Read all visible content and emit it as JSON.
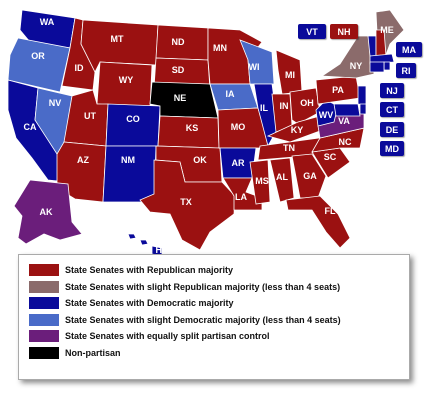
{
  "colors": {
    "rep": "#9b1111",
    "slight_rep": "#8b6b6b",
    "dem": "#0a0a9a",
    "slight_dem": "#4a6bc8",
    "split": "#6b1e7b",
    "nonpartisan": "#000000"
  },
  "states": {
    "WA": "dem",
    "OR": "slight_dem",
    "CA": "dem",
    "NV": "slight_dem",
    "ID": "rep",
    "MT": "rep",
    "WY": "rep",
    "UT": "rep",
    "AZ": "rep",
    "CO": "dem",
    "NM": "dem",
    "ND": "rep",
    "SD": "rep",
    "NE": "nonpartisan",
    "KS": "rep",
    "OK": "rep",
    "TX": "rep",
    "MN": "rep",
    "IA": "slight_dem",
    "MO": "rep",
    "AR": "dem",
    "LA": "rep",
    "WI": "slight_dem",
    "IL": "dem",
    "MI": "rep",
    "IN": "rep",
    "OH": "rep",
    "KY": "rep",
    "TN": "rep",
    "MS": "rep",
    "AL": "rep",
    "GA": "rep",
    "FL": "rep",
    "SC": "rep",
    "NC": "rep",
    "VA": "split",
    "WV": "dem",
    "PA": "rep",
    "NY": "slight_rep",
    "ME": "slight_rep",
    "AK": "split",
    "HI": "dem",
    "VT": "dem",
    "NH": "rep",
    "MA": "dem",
    "RI": "dem",
    "CT": "dem",
    "NJ": "dem",
    "DE": "dem",
    "MD": "dem"
  },
  "tags": [
    "VT",
    "NH",
    "MA",
    "RI",
    "NJ",
    "CT",
    "DE",
    "MD"
  ],
  "legend": [
    {
      "category": "rep",
      "label": "State Senates with Republican majority"
    },
    {
      "category": "slight_rep",
      "label": "State Senates with slight Republican majority (less than 4 seats)"
    },
    {
      "category": "dem",
      "label": "State Senates with Democratic majority"
    },
    {
      "category": "slight_dem",
      "label": "State Senates with slight Democratic  majority (less than 4 seats)"
    },
    {
      "category": "split",
      "label": "State Senates with equally split partisan control"
    },
    {
      "category": "nonpartisan",
      "label": "Non-partisan"
    }
  ]
}
